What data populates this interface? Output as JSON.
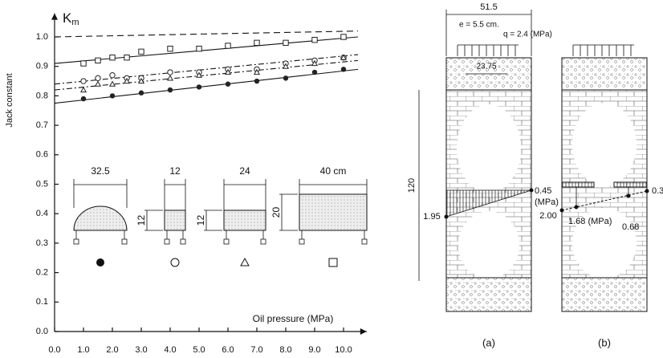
{
  "chart_data": {
    "type": "scatter",
    "y_symbol": "K",
    "y_symbol_sub": "m",
    "ylabel": "Jack constant",
    "xlabel": "Oil pressure (MPa)",
    "xlim": [
      0,
      10.8
    ],
    "ylim": [
      0,
      1.08
    ],
    "xticks": [
      {
        "value": 0,
        "label": "0.0"
      },
      {
        "value": 1,
        "label": "1.0"
      },
      {
        "value": 2,
        "label": "2.0"
      },
      {
        "value": 3,
        "label": "3.0"
      },
      {
        "value": 4,
        "label": "4.0"
      },
      {
        "value": 5,
        "label": "5.0"
      },
      {
        "value": 6,
        "label": "6.0"
      },
      {
        "value": 7,
        "label": "7.0"
      },
      {
        "value": 8,
        "label": "8.0"
      },
      {
        "value": 9,
        "label": "9.0"
      },
      {
        "value": 10,
        "label": "10.0"
      }
    ],
    "yticks": [
      {
        "value": 0,
        "label": "0.0"
      },
      {
        "value": 0.1,
        "label": "0.1"
      },
      {
        "value": 0.2,
        "label": "0.2"
      },
      {
        "value": 0.3,
        "label": "0.3"
      },
      {
        "value": 0.4,
        "label": "0.4"
      },
      {
        "value": 0.5,
        "label": "0.5"
      },
      {
        "value": 0.6,
        "label": "0.6"
      },
      {
        "value": 0.7,
        "label": "0.7"
      },
      {
        "value": 0.8,
        "label": "0.8"
      },
      {
        "value": 0.9,
        "label": "0.9"
      },
      {
        "value": 1.0,
        "label": "1.0"
      }
    ],
    "grid": false,
    "series": [
      {
        "marker": "square",
        "color": "#222",
        "x": [
          1,
          1.5,
          2,
          2.5,
          3,
          4,
          5,
          6,
          7,
          8,
          9,
          10
        ],
        "values": [
          0.91,
          0.92,
          0.93,
          0.93,
          0.95,
          0.96,
          0.96,
          0.97,
          0.98,
          0.98,
          0.99,
          1.0
        ]
      },
      {
        "marker": "circle",
        "color": "#222",
        "x": [
          1,
          1.5,
          2,
          2.5,
          3,
          4,
          5,
          6,
          7,
          8,
          9,
          10
        ],
        "values": [
          0.85,
          0.86,
          0.87,
          0.86,
          0.86,
          0.88,
          0.88,
          0.89,
          0.89,
          0.91,
          0.92,
          0.93
        ]
      },
      {
        "marker": "triangle",
        "color": "#222",
        "x": [
          1,
          1.5,
          2,
          2.5,
          3,
          4,
          5,
          6,
          7,
          8,
          9,
          10
        ],
        "values": [
          0.82,
          0.84,
          0.84,
          0.85,
          0.85,
          0.86,
          0.87,
          0.88,
          0.88,
          0.9,
          0.91,
          0.93
        ]
      },
      {
        "marker": "filled-circle",
        "color": "#222",
        "x": [
          1,
          2,
          3,
          4,
          5,
          6,
          7,
          8,
          9,
          10
        ],
        "values": [
          0.79,
          0.8,
          0.81,
          0.82,
          0.83,
          0.84,
          0.85,
          0.86,
          0.88,
          0.89
        ]
      }
    ],
    "lines": [
      {
        "dash": "8 5",
        "x": [
          0,
          10.5
        ],
        "values": [
          1.0,
          1.02
        ]
      },
      {
        "dash": "",
        "x": [
          0,
          10.5
        ],
        "values": [
          0.91,
          1.0
        ]
      },
      {
        "dash": "7 3 2 3",
        "x": [
          0,
          10.5
        ],
        "values": [
          0.84,
          0.94
        ]
      },
      {
        "dash": "7 3 2 3",
        "x": [
          0,
          10.5
        ],
        "values": [
          0.82,
          0.92
        ]
      },
      {
        "dash": "",
        "x": [
          0,
          10.5
        ],
        "values": [
          0.775,
          0.89
        ]
      }
    ],
    "specimens": [
      {
        "width": "32.5",
        "marker": "filled-circle"
      },
      {
        "width": "12",
        "height": "12",
        "marker": "circle"
      },
      {
        "width": "24",
        "height": "12",
        "marker": "triangle"
      },
      {
        "width": "40 cm",
        "height": "20",
        "marker": "square"
      }
    ]
  },
  "diagrams": {
    "width_dim": "51.5",
    "eccentricity": "e = 5.5 cm.",
    "load": "q = 2.4 (MPa)",
    "cap_dim": "23.75",
    "height_dim": "120",
    "a": {
      "caption": "(a)",
      "right_stress": "0.45",
      "unit": "(MPa)",
      "left_stress": "1.95"
    },
    "b": {
      "caption": "(b)",
      "right_stress": "0.3",
      "mid_right": "0.68",
      "left_stress": "2.00",
      "mid_left": "1.68 (MPa)"
    }
  }
}
